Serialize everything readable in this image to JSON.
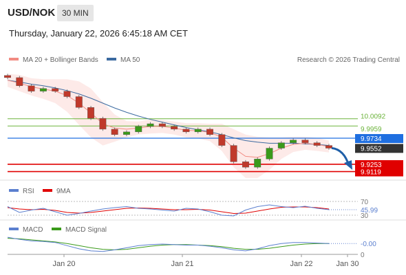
{
  "header": {
    "symbol": "USD/NOK",
    "interval": "30 MIN",
    "datetime": "Thursday, January 22, 2026 6:45:18 AM CET"
  },
  "main_panel": {
    "legend": [
      {
        "label": "MA 20 + Bollinger Bands",
        "color": "#f28b82"
      },
      {
        "label": "MA 50",
        "color": "#3b6aa0"
      }
    ],
    "copyright": "Research © 2026 Trading Central",
    "levels": [
      {
        "value": 10.0092,
        "label": "10.0092",
        "type": "resistance",
        "color": "#6bb33a"
      },
      {
        "value": 9.9959,
        "label": "9.9959",
        "type": "resistance",
        "color": "#6bb33a"
      },
      {
        "value": 9.9734,
        "label": "9.9734",
        "type": "pivot",
        "color": "#1f6fe0"
      },
      {
        "value": 9.9253,
        "label": "9.9253",
        "type": "support",
        "color": "#e00000"
      },
      {
        "value": 9.9119,
        "label": "9.9119",
        "type": "support",
        "color": "#e00000"
      }
    ],
    "last_price": {
      "value": 9.9552,
      "label": "9.9552"
    }
  },
  "rsi_panel": {
    "legend": [
      {
        "label": "RSI",
        "color": "#5b7fcf"
      },
      {
        "label": "9MA",
        "color": "#e00000"
      }
    ],
    "levels": [
      "70",
      "30"
    ],
    "current": "45.99"
  },
  "macd_panel": {
    "legend": [
      {
        "label": "MACD",
        "color": "#5b7fcf"
      },
      {
        "label": "MACD Signal",
        "color": "#3a9a1a"
      }
    ],
    "current": "-0.00",
    "zero": "0"
  },
  "x_axis": {
    "ticks": [
      "Jan 20",
      "Jan 21",
      "Jan 22",
      "Jan 30"
    ]
  },
  "chart_data": {
    "type": "candlestick",
    "x": [
      "Jan 19",
      "Jan 19",
      "Jan 19",
      "Jan 20",
      "Jan 20",
      "Jan 20",
      "Jan 20",
      "Jan 20",
      "Jan 20",
      "Jan 20",
      "Jan 20",
      "Jan 20",
      "Jan 20",
      "Jan 20",
      "Jan 21",
      "Jan 21",
      "Jan 21",
      "Jan 21",
      "Jan 21",
      "Jan 21",
      "Jan 21",
      "Jan 21",
      "Jan 21",
      "Jan 21",
      "Jan 21",
      "Jan 22",
      "Jan 22",
      "Jan 22"
    ],
    "close": [
      10.085,
      10.07,
      10.06,
      10.065,
      10.06,
      10.05,
      10.03,
      10.01,
      9.99,
      9.98,
      9.985,
      9.995,
      10.0,
      9.995,
      9.99,
      9.985,
      9.99,
      9.98,
      9.96,
      9.93,
      9.92,
      9.935,
      9.955,
      9.965,
      9.97,
      9.965,
      9.96,
      9.955
    ],
    "ma20": [
      10.08,
      10.075,
      10.068,
      10.064,
      10.06,
      10.052,
      10.038,
      10.02,
      10.0,
      9.992,
      9.99,
      9.992,
      9.995,
      9.995,
      9.992,
      9.988,
      9.987,
      9.984,
      9.975,
      9.955,
      9.94,
      9.938,
      9.945,
      9.955,
      9.962,
      9.964,
      9.962,
      9.958
    ],
    "ma50": [
      10.08,
      10.077,
      10.073,
      10.07,
      10.066,
      10.061,
      10.055,
      10.047,
      10.038,
      10.029,
      10.021,
      10.014,
      10.008,
      10.003,
      9.998,
      9.993,
      9.989,
      9.985,
      9.98,
      9.974,
      9.969,
      9.966,
      9.964,
      9.964,
      9.964,
      9.963,
      9.962,
      9.96
    ],
    "bb_width": [
      0.012,
      0.015,
      0.016,
      0.018,
      0.022,
      0.03,
      0.04,
      0.045,
      0.04,
      0.025,
      0.015,
      0.012,
      0.013,
      0.012,
      0.012,
      0.013,
      0.014,
      0.016,
      0.025,
      0.035,
      0.04,
      0.038,
      0.03,
      0.02,
      0.014,
      0.012,
      0.012,
      0.011
    ],
    "rsi": [
      55,
      38,
      45,
      50,
      40,
      30,
      35,
      42,
      48,
      52,
      55,
      50,
      48,
      45,
      42,
      50,
      48,
      40,
      30,
      28,
      45,
      55,
      60,
      55,
      52,
      56,
      50,
      46
    ],
    "rsi_ma": [
      52,
      48,
      46,
      47,
      44,
      38,
      36,
      38,
      42,
      46,
      50,
      51,
      50,
      48,
      46,
      46,
      47,
      45,
      40,
      35,
      36,
      42,
      48,
      53,
      54,
      54,
      52,
      48
    ],
    "macd": [
      0.012,
      0.008,
      0.005,
      0.004,
      0.002,
      -0.004,
      -0.01,
      -0.014,
      -0.015,
      -0.012,
      -0.008,
      -0.004,
      -0.002,
      -0.001,
      -0.002,
      -0.003,
      -0.003,
      -0.005,
      -0.008,
      -0.012,
      -0.014,
      -0.01,
      -0.004,
      0.0,
      0.002,
      0.002,
      0.001,
      0.0
    ],
    "macd_signal": [
      0.01,
      0.009,
      0.007,
      0.005,
      0.003,
      0.0,
      -0.004,
      -0.008,
      -0.011,
      -0.012,
      -0.011,
      -0.008,
      -0.005,
      -0.003,
      -0.002,
      -0.002,
      -0.003,
      -0.004,
      -0.006,
      -0.009,
      -0.011,
      -0.011,
      -0.009,
      -0.006,
      -0.003,
      -0.001,
      0.0,
      0.0
    ],
    "ylim": [
      9.905,
      10.095
    ],
    "rsi_ylim": [
      20,
      80
    ],
    "macd_ylim": [
      -0.018,
      0.016
    ],
    "forecast": {
      "from": 9.9552,
      "to": 9.9253,
      "direction": "down"
    },
    "grid": false
  }
}
